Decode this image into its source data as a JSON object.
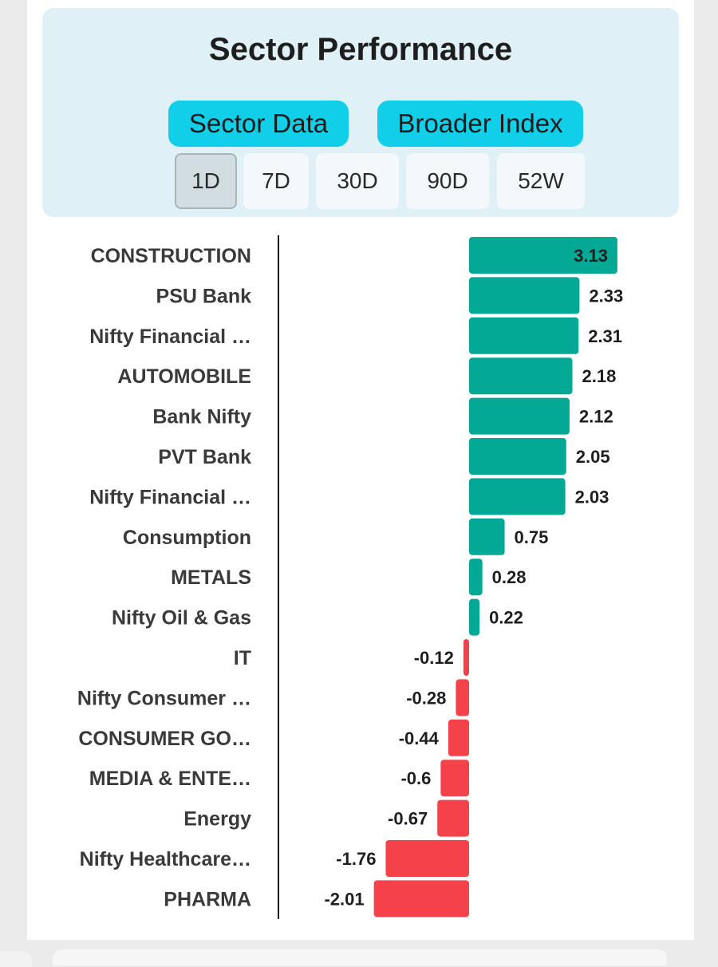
{
  "header": {
    "title": "Sector Performance",
    "tabs": [
      "Sector Data",
      "Broader Index"
    ],
    "periods": [
      "1D",
      "7D",
      "30D",
      "90D",
      "52W"
    ],
    "active_period": "1D"
  },
  "colors": {
    "positive": "#04a996",
    "negative": "#f5414a",
    "tab": "#12cfe9",
    "panel": "#dff1f6"
  },
  "chart_data": {
    "type": "bar",
    "orientation": "horizontal",
    "categories": [
      "CONSTRUCTION",
      "PSU Bank",
      "Nifty Financial …",
      "AUTOMOBILE",
      "Bank Nifty",
      "PVT Bank",
      "Nifty Financial …",
      "Consumption",
      "METALS",
      "Nifty Oil & Gas",
      "IT",
      "Nifty Consumer …",
      "CONSUMER GO…",
      "MEDIA & ENTE…",
      "Energy",
      "Nifty Healthcare…",
      "PHARMA"
    ],
    "values": [
      3.13,
      2.33,
      2.31,
      2.18,
      2.12,
      2.05,
      2.03,
      0.75,
      0.28,
      0.22,
      -0.12,
      -0.28,
      -0.44,
      -0.6,
      -0.67,
      -1.76,
      -2.01
    ],
    "title": "Sector Performance",
    "xlabel": "",
    "ylabel": ""
  }
}
